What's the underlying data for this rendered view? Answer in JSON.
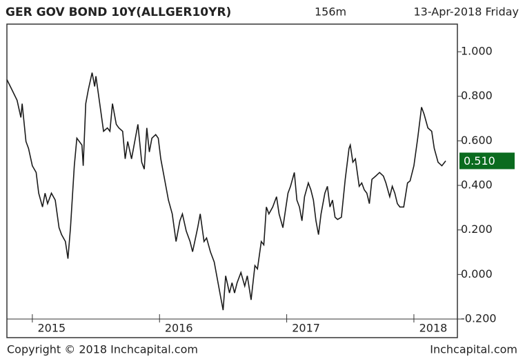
{
  "chart_data": {
    "type": "line",
    "title": "GER GOV BOND 10Y(ALLGER10YR)",
    "interval": "156m",
    "date": "13-Apr-2018 Friday",
    "copyright": "Copyright © 2018 Inchcapital.com",
    "source": "Inchcapital.com",
    "color": "#1a1a1a",
    "last_value_label": "0.510",
    "last_value_color": "#0b6b1f",
    "xlim": [
      2014.8,
      2018.342
    ],
    "xticks": [
      2015,
      2016,
      2017,
      2018
    ],
    "ylim": [
      -0.2,
      1.124
    ],
    "yticks": [
      {
        "value": 1,
        "label": "1.000"
      },
      {
        "value": 0.8,
        "label": "0.800"
      },
      {
        "value": 0.6,
        "label": "0.600"
      },
      {
        "value": 0.4,
        "label": "0.400"
      },
      {
        "value": 0.2,
        "label": "0.200"
      },
      {
        "value": 0,
        "label": "0.000"
      },
      {
        "value": -0.2,
        "label": "-0.200"
      }
    ],
    "x": [
      2014.8,
      2014.84,
      2014.88,
      2014.91,
      2014.92,
      2014.95,
      2014.97,
      2015.0,
      2015.03,
      2015.05,
      2015.08,
      2015.1,
      2015.12,
      2015.15,
      2015.18,
      2015.21,
      2015.23,
      2015.26,
      2015.28,
      2015.3,
      2015.33,
      2015.35,
      2015.39,
      2015.4,
      2015.42,
      2015.44,
      2015.47,
      2015.49,
      2015.5,
      2015.53,
      2015.56,
      2015.59,
      2015.61,
      2015.63,
      2015.66,
      2015.68,
      2015.71,
      2015.73,
      2015.75,
      2015.78,
      2015.8,
      2015.83,
      2015.86,
      2015.88,
      2015.9,
      2015.92,
      2015.94,
      2015.97,
      2015.99,
      2016.01,
      2016.05,
      2016.07,
      2016.1,
      2016.13,
      2016.16,
      2016.18,
      2016.21,
      2016.24,
      2016.26,
      2016.3,
      2016.32,
      2016.35,
      2016.37,
      2016.4,
      2016.43,
      2016.45,
      2016.48,
      2016.5,
      2016.52,
      2016.55,
      2016.57,
      2016.59,
      2016.61,
      2016.64,
      2016.67,
      2016.69,
      2016.72,
      2016.75,
      2016.77,
      2016.8,
      2016.82,
      2016.84,
      2016.86,
      2016.89,
      2016.92,
      2016.94,
      2016.97,
      2016.99,
      2017.01,
      2017.03,
      2017.06,
      2017.08,
      2017.1,
      2017.12,
      2017.14,
      2017.17,
      2017.19,
      2017.21,
      2017.23,
      2017.25,
      2017.27,
      2017.3,
      2017.32,
      2017.34,
      2017.36,
      2017.38,
      2017.4,
      2017.43,
      2017.46,
      2017.49,
      2017.5,
      2017.52,
      2017.54,
      2017.57,
      2017.59,
      2017.61,
      2017.63,
      2017.65,
      2017.67,
      2017.7,
      2017.73,
      2017.76,
      2017.78,
      2017.81,
      2017.83,
      2017.85,
      2017.87,
      2017.89,
      2017.92,
      2017.95,
      2017.97,
      2018.0,
      2018.03,
      2018.06,
      2018.08,
      2018.11,
      2018.14,
      2018.16,
      2018.19,
      2018.22,
      2018.25
    ],
    "values": [
      0.875,
      0.829,
      0.782,
      0.705,
      0.767,
      0.597,
      0.566,
      0.488,
      0.458,
      0.365,
      0.303,
      0.365,
      0.318,
      0.365,
      0.334,
      0.21,
      0.179,
      0.148,
      0.071,
      0.21,
      0.488,
      0.612,
      0.581,
      0.488,
      0.767,
      0.829,
      0.906,
      0.844,
      0.89,
      0.767,
      0.643,
      0.658,
      0.643,
      0.767,
      0.674,
      0.658,
      0.643,
      0.519,
      0.597,
      0.519,
      0.581,
      0.674,
      0.504,
      0.473,
      0.658,
      0.55,
      0.612,
      0.628,
      0.612,
      0.519,
      0.396,
      0.334,
      0.272,
      0.148,
      0.241,
      0.272,
      0.195,
      0.148,
      0.102,
      0.21,
      0.272,
      0.148,
      0.164,
      0.102,
      0.056,
      -0.006,
      -0.099,
      -0.16,
      -0.006,
      -0.083,
      -0.037,
      -0.083,
      -0.037,
      0.009,
      -0.052,
      -0.006,
      -0.114,
      0.04,
      0.025,
      0.148,
      0.133,
      0.303,
      0.272,
      0.303,
      0.349,
      0.272,
      0.21,
      0.288,
      0.365,
      0.396,
      0.458,
      0.334,
      0.303,
      0.241,
      0.349,
      0.411,
      0.38,
      0.334,
      0.241,
      0.179,
      0.272,
      0.365,
      0.396,
      0.303,
      0.334,
      0.257,
      0.247,
      0.257,
      0.427,
      0.566,
      0.581,
      0.504,
      0.519,
      0.396,
      0.411,
      0.38,
      0.365,
      0.318,
      0.427,
      0.442,
      0.458,
      0.442,
      0.411,
      0.349,
      0.396,
      0.365,
      0.318,
      0.303,
      0.303,
      0.411,
      0.42,
      0.488,
      0.612,
      0.751,
      0.72,
      0.658,
      0.643,
      0.566,
      0.504,
      0.488,
      0.51
    ]
  }
}
